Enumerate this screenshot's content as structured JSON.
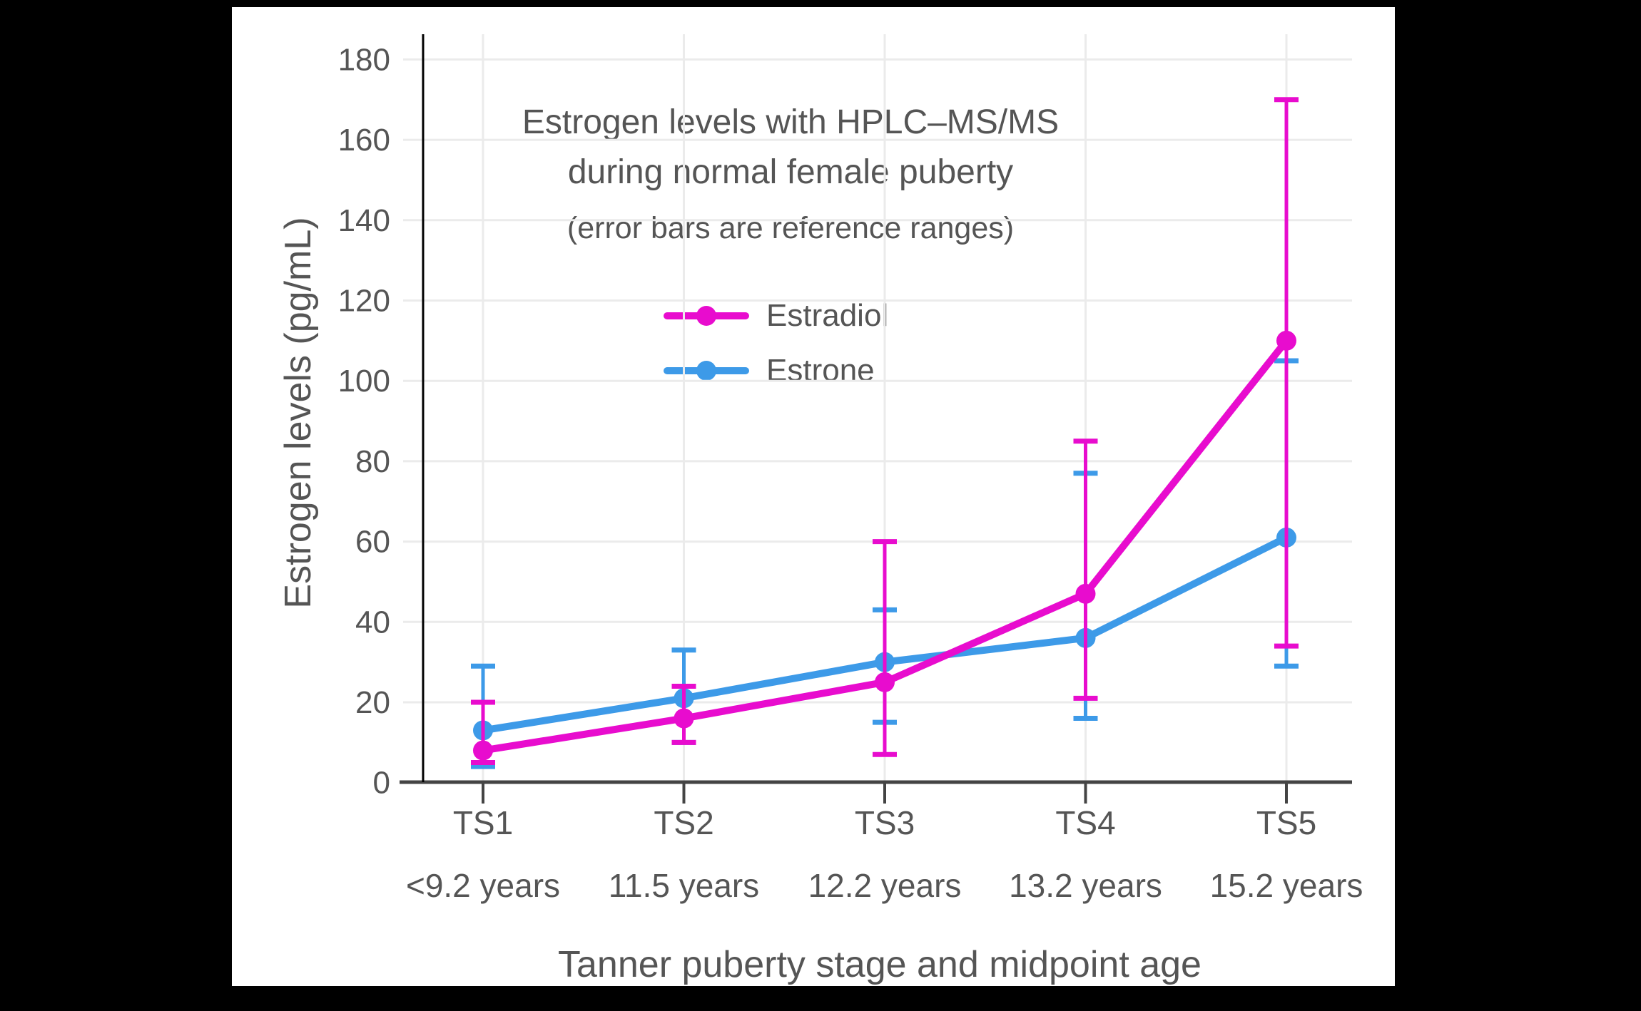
{
  "figure": {
    "background": "#ffffff",
    "outer_background": "#000000",
    "title_line1": "Estrogen levels with HPLC–MS/MS",
    "title_line2": "during normal female puberty",
    "title_line3": "(error bars are reference ranges)",
    "x_axis_title": "Tanner puberty stage and midpoint age",
    "y_axis_title": "Estrogen levels (pg/mL)"
  },
  "legend": {
    "items": [
      {
        "label": "Estradiol",
        "color": "#E80CCE"
      },
      {
        "label": "Estrone",
        "color": "#3D9AE8"
      }
    ]
  },
  "chart_data": {
    "type": "line",
    "title": "Estrogen levels with HPLC–MS/MS during normal female puberty",
    "subtitle": "(error bars are reference ranges)",
    "xlabel": "Tanner puberty stage and midpoint age",
    "ylabel": "Estrogen levels (pg/mL)",
    "categories": [
      "TS1",
      "TS2",
      "TS3",
      "TS4",
      "TS5"
    ],
    "category_ages": [
      "<9.2 years",
      "11.5 years",
      "12.2 years",
      "13.2 years",
      "15.2 years"
    ],
    "y_ticks": [
      0,
      20,
      40,
      60,
      80,
      100,
      120,
      140,
      160,
      180
    ],
    "ylim": [
      0,
      186
    ],
    "grid": true,
    "legend_position": "upper-left-inside",
    "series": [
      {
        "name": "Estradiol",
        "color": "#E80CCE",
        "values": [
          8,
          16,
          25,
          47,
          110
        ],
        "err_low": [
          5,
          10,
          7,
          21,
          34
        ],
        "err_high": [
          20,
          24,
          60,
          85,
          170
        ]
      },
      {
        "name": "Estrone",
        "color": "#3D9AE8",
        "values": [
          13,
          21,
          30,
          36,
          61
        ],
        "err_low": [
          4,
          10,
          15,
          16,
          29
        ],
        "err_high": [
          29,
          33,
          43,
          77,
          105
        ]
      }
    ],
    "styles": {
      "grid_color": "#ebebeb",
      "x_axis_line_color": "#444444",
      "y_axis_line_color": "#000000",
      "tick_label_color": "#555555"
    }
  }
}
